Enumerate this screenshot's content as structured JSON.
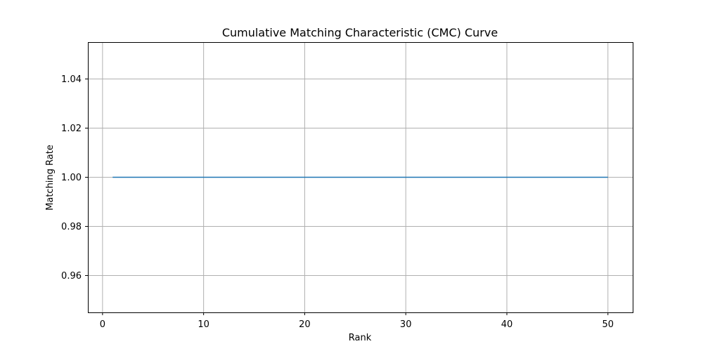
{
  "chart_data": {
    "type": "line",
    "title": "Cumulative Matching Characteristic (CMC) Curve",
    "xlabel": "Rank",
    "ylabel": "Matching Rate",
    "xlim": [
      -1.45,
      52.45
    ],
    "ylim": [
      0.945,
      1.055
    ],
    "xticks": [
      0,
      10,
      20,
      30,
      40,
      50
    ],
    "xtick_labels": [
      "0",
      "10",
      "20",
      "30",
      "40",
      "50"
    ],
    "yticks": [
      0.96,
      0.98,
      1.0,
      1.02,
      1.04
    ],
    "ytick_labels": [
      "0.96",
      "0.98",
      "1.00",
      "1.02",
      "1.04"
    ],
    "grid": true,
    "series": [
      {
        "color": "#1f77b4",
        "x": [
          1,
          2,
          3,
          4,
          5,
          6,
          7,
          8,
          9,
          10,
          11,
          12,
          13,
          14,
          15,
          16,
          17,
          18,
          19,
          20,
          21,
          22,
          23,
          24,
          25,
          26,
          27,
          28,
          29,
          30,
          31,
          32,
          33,
          34,
          35,
          36,
          37,
          38,
          39,
          40,
          41,
          42,
          43,
          44,
          45,
          46,
          47,
          48,
          49,
          50
        ],
        "y": [
          1,
          1,
          1,
          1,
          1,
          1,
          1,
          1,
          1,
          1,
          1,
          1,
          1,
          1,
          1,
          1,
          1,
          1,
          1,
          1,
          1,
          1,
          1,
          1,
          1,
          1,
          1,
          1,
          1,
          1,
          1,
          1,
          1,
          1,
          1,
          1,
          1,
          1,
          1,
          1,
          1,
          1,
          1,
          1,
          1,
          1,
          1,
          1,
          1,
          1
        ]
      }
    ]
  }
}
